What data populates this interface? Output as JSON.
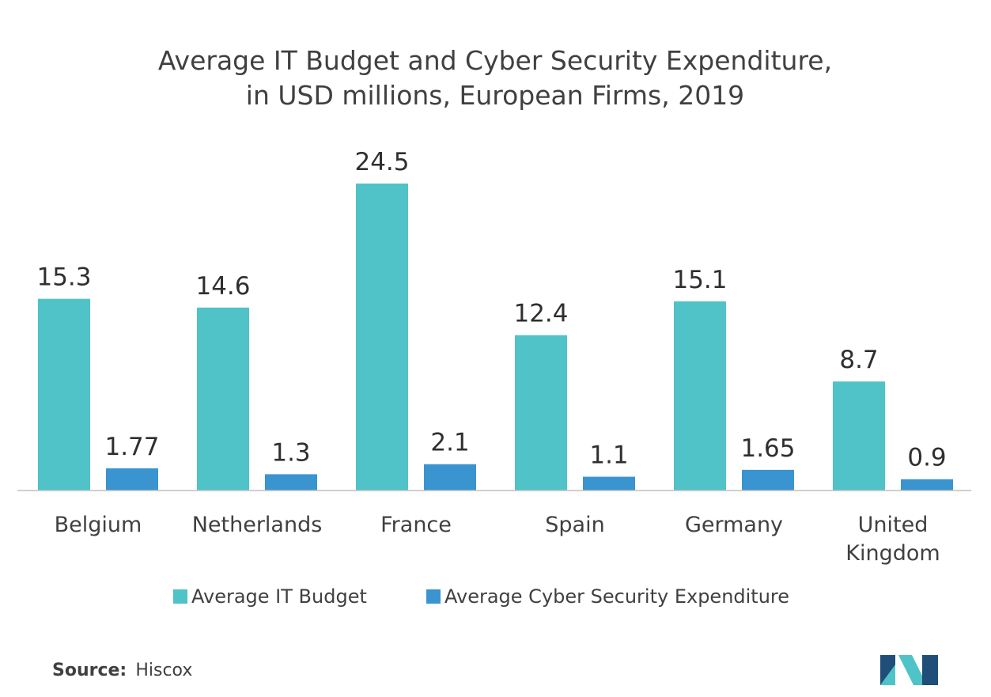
{
  "chart_data": {
    "type": "bar",
    "title_lines": [
      "Average IT Budget and Cyber Security Expenditure,",
      "in USD millions, European Firms, 2019"
    ],
    "categories": [
      "Belgium",
      "Netherlands",
      "France",
      "Spain",
      "Germany",
      "United Kingdom"
    ],
    "category_lines": [
      [
        "Belgium"
      ],
      [
        "Netherlands"
      ],
      [
        "France"
      ],
      [
        "Spain"
      ],
      [
        "Germany"
      ],
      [
        "United",
        "Kingdom"
      ]
    ],
    "series": [
      {
        "name": "Average IT Budget",
        "color": "#4fc3c8",
        "values": [
          15.3,
          14.6,
          24.5,
          12.4,
          15.1,
          8.7
        ],
        "labels": [
          "15.3",
          "14.6",
          "24.5",
          "12.4",
          "15.1",
          "8.7"
        ]
      },
      {
        "name": "Average Cyber Security Expenditure",
        "color": "#3a94d0",
        "values": [
          1.77,
          1.3,
          2.1,
          1.1,
          1.65,
          0.9
        ],
        "labels": [
          "1.77",
          "1.3",
          "2.1",
          "1.1",
          "1.65",
          "0.9"
        ]
      }
    ],
    "xlabel": "",
    "ylabel": "",
    "ylim": [
      0,
      24.5
    ],
    "grid": false,
    "legend_position": "bottom-center"
  },
  "source": {
    "label": "Source:",
    "value": "Hiscox"
  },
  "logo": {
    "name": "Mordor Intelligence logo",
    "colors": [
      "#1f4e79",
      "#4fc3c8"
    ]
  },
  "axis_color": "#bfbfbf"
}
